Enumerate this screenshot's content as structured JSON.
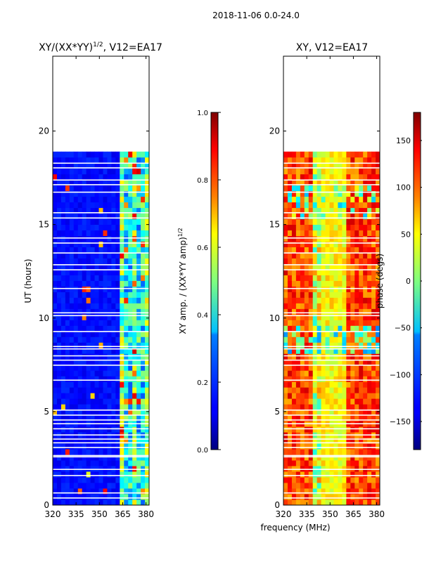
{
  "suptitle": "2018-11-06 0.0-24.0",
  "chart_data": [
    {
      "type": "heatmap",
      "title_main": "XY/(XX*YY)",
      "title_exp": "1/2",
      "title_rest": ", V12=EA17",
      "ylabel": "UT (hours)",
      "xlabel": "",
      "xlim": [
        320,
        382
      ],
      "ylim": [
        0,
        24
      ],
      "xticks": [
        320,
        335,
        350,
        365,
        380
      ],
      "yticks": [
        0,
        5,
        10,
        15,
        20
      ],
      "data_extent_hours": [
        0,
        18.9
      ],
      "colorbar": {
        "label_main": "XY amp. / (XX*YY amp)",
        "label_exp": "1/2",
        "range": [
          0.0,
          1.0
        ],
        "ticks": [
          "0.0",
          "0.2",
          "0.4",
          "0.6",
          "0.8",
          "1.0"
        ]
      }
    },
    {
      "type": "heatmap",
      "title_main": "XY, V12=EA17",
      "ylabel": "",
      "xlabel": "frequency (MHz)",
      "xlim": [
        320,
        382
      ],
      "ylim": [
        0,
        24
      ],
      "xticks": [
        320,
        335,
        350,
        365,
        380
      ],
      "yticks": [
        0,
        5,
        10,
        15,
        20
      ],
      "data_extent_hours": [
        0,
        18.9
      ],
      "colorbar": {
        "label_main": "phase (degs)",
        "range": [
          -180,
          180
        ],
        "ticks": [
          "150",
          "100",
          "50",
          "0",
          "−50",
          "−100",
          "−150"
        ]
      }
    }
  ]
}
